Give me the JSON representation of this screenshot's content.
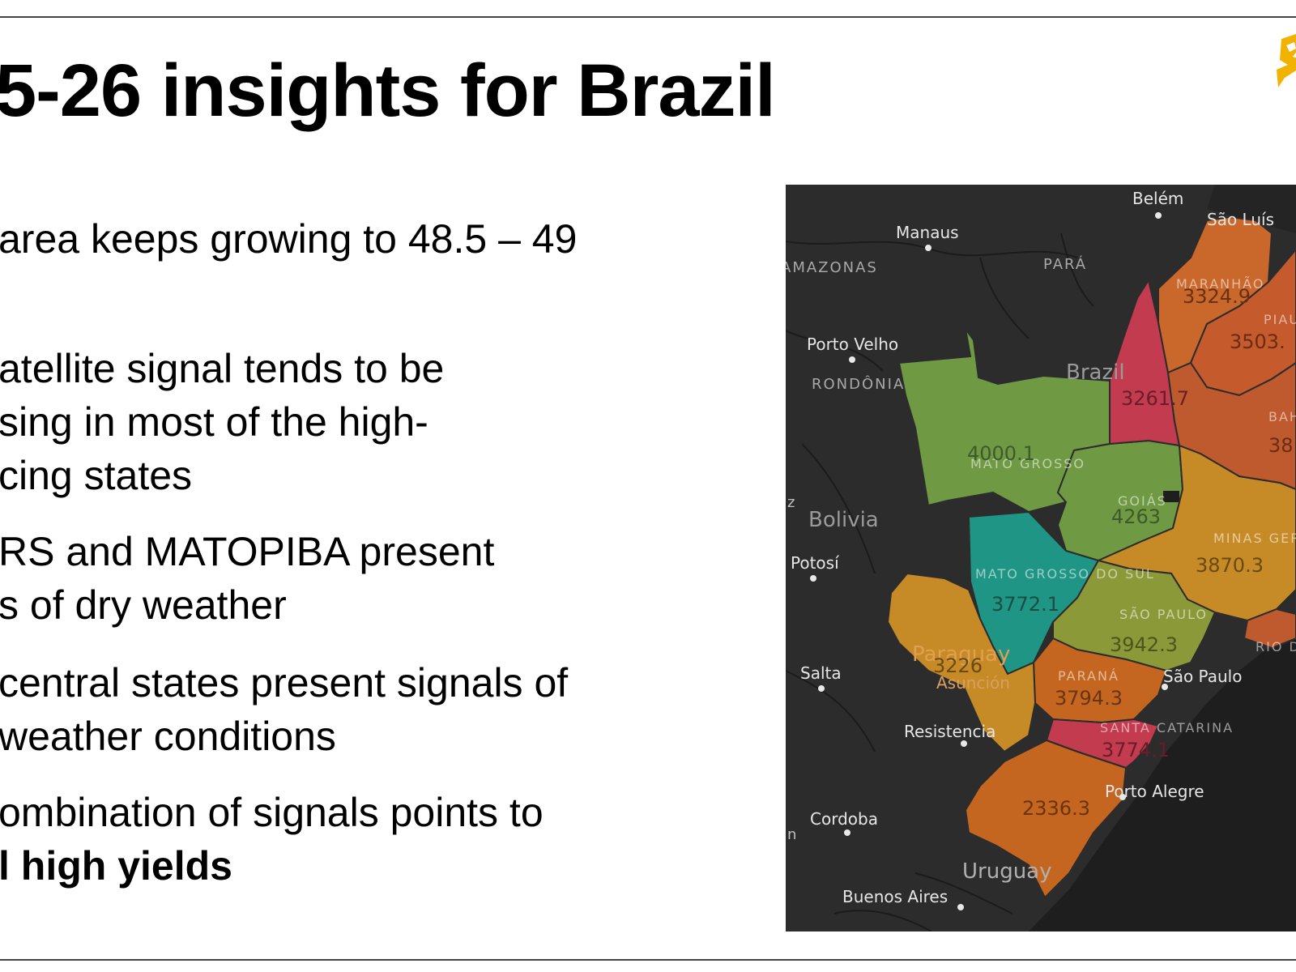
{
  "slide": {
    "title": "5-26 insights for Brazil",
    "bullets": [
      {
        "lines": [
          "area keeps growing to 48.5 – 49"
        ]
      },
      {
        "lines": [
          "atellite signal tends to be",
          "sing in most of the high-",
          "cing states"
        ]
      },
      {
        "lines": [
          "RS and MATOPIBA present",
          "s of dry weather"
        ]
      },
      {
        "lines": [
          "central states present signals of",
          "weather conditions"
        ]
      },
      {
        "lines": [
          "ombination of signals points to"
        ],
        "strong": "l high yields"
      }
    ]
  },
  "map": {
    "country_label": "Brazil",
    "cities": [
      "Belém",
      "São Luís",
      "Manaus",
      "Porto Velho",
      "Potosí",
      "Salta",
      "Resistencia",
      "Asunción",
      "Cordoba",
      "Buenos Aires",
      "Porto Alegre",
      "São Paulo"
    ],
    "region_labels": [
      "AMAZONAS",
      "PARÁ",
      "RONDÔNIA",
      "MARANHÃO",
      "PIAUÍ",
      "BAHIA",
      "MATO GROSSO",
      "GOIÁS",
      "MINAS GERAIS",
      "MATO GROSSO DO SUL",
      "SÃO PAULO",
      "PARANÁ",
      "SANTA CATARINA",
      "RIO DE JANEIRO"
    ],
    "country_labels": [
      "Bolivia",
      "Paraguay",
      "Uruguay"
    ],
    "state_values": {
      "mato_grosso": "4000.1",
      "goias": "4263",
      "mato_grosso_do_sul": "3772.1",
      "minas_gerais": "3870.3",
      "sao_paulo": "3942.3",
      "parana": "3794.3",
      "santa_catarina": "3774.1",
      "rio_grande_do_sul": "2336.3",
      "paraguay": "3226",
      "tocantins": "3261.7",
      "maranhao": "3324.9",
      "piaui": "3503.",
      "bahia": "38"
    },
    "colors": {
      "ocean": "#1e1e1f",
      "land": "#2c2c2d",
      "green": "#6f9a43",
      "teal": "#1f9585",
      "olive": "#8b9938",
      "orange": "#c47f25",
      "orange_dark": "#c4661f",
      "burnt": "#bf5a2e",
      "crimson": "#c23b4e",
      "amber": "#d3931f"
    }
  }
}
